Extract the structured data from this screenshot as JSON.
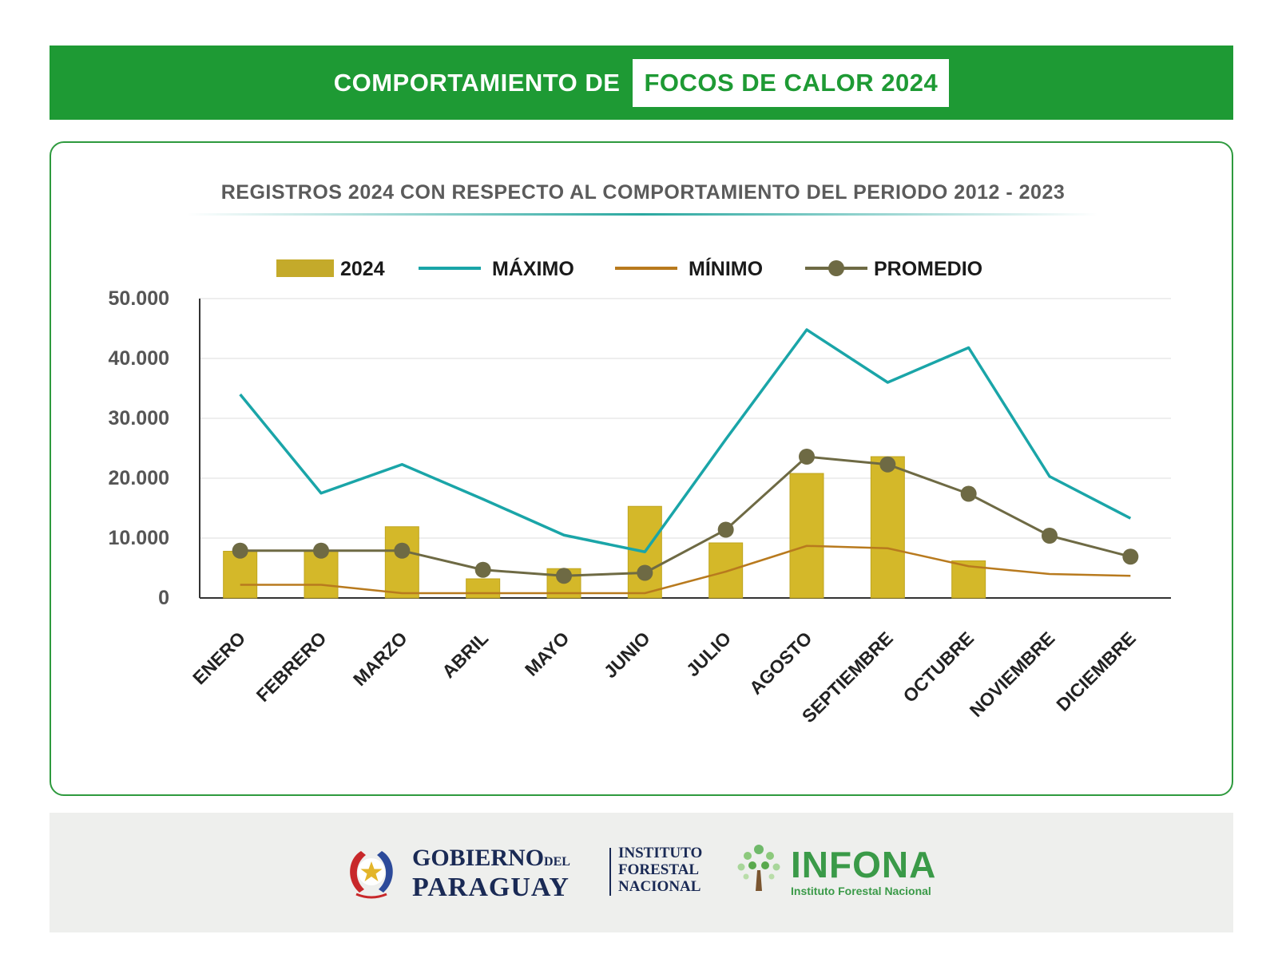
{
  "header": {
    "title_prefix": "COMPORTAMIENTO DE",
    "title_highlight": "FOCOS DE CALOR 2024"
  },
  "colors": {
    "banner_green": "#1e9a34",
    "bar_2024": "#d4b829",
    "maximo": "#1aa5a8",
    "minimo": "#b87a1e",
    "promedio": "#6e6a44"
  },
  "chart_data": {
    "type": "bar",
    "title": "REGISTROS 2024 CON RESPECTO AL COMPORTAMIENTO DEL PERIODO 2012 - 2023",
    "categories": [
      "ENERO",
      "FEBRERO",
      "MARZO",
      "ABRIL",
      "MAYO",
      "JUNIO",
      "JULIO",
      "AGOSTO",
      "SEPTIEMBRE",
      "OCTUBRE",
      "NOVIEMBRE",
      "DICIEMBRE"
    ],
    "y_ticks": [
      "0",
      "10.000",
      "20.000",
      "30.000",
      "40.000",
      "50.000"
    ],
    "ylim": [
      0,
      50000
    ],
    "grid": true,
    "legend_position": "top",
    "series": [
      {
        "name": "2024",
        "kind": "bar",
        "values": [
          7800,
          7800,
          11900,
          3200,
          4900,
          15300,
          9200,
          20800,
          23600,
          6200,
          null,
          null
        ]
      },
      {
        "name": "MÁXIMO",
        "kind": "line",
        "values": [
          34000,
          17500,
          22300,
          16500,
          10500,
          7700,
          26500,
          44800,
          36000,
          41800,
          20300,
          13300
        ]
      },
      {
        "name": "MÍNIMO",
        "kind": "line",
        "values": [
          2200,
          2200,
          800,
          800,
          800,
          800,
          4400,
          8700,
          8300,
          5300,
          4000,
          3700
        ]
      },
      {
        "name": "PROMEDIO",
        "kind": "line_marker",
        "values": [
          7900,
          7900,
          7900,
          4700,
          3700,
          4200,
          11400,
          23600,
          22300,
          17400,
          10400,
          6900
        ]
      }
    ]
  },
  "footer": {
    "gov_line1": "GOBIERNO",
    "gov_del": "DEL",
    "gov_line2": "PARAGUAY",
    "inst_line1": "INSTITUTO",
    "inst_line2": "FORESTAL",
    "inst_line3": "NACIONAL",
    "infona_name": "INFONA",
    "infona_sub": "Instituto Forestal Nacional"
  }
}
